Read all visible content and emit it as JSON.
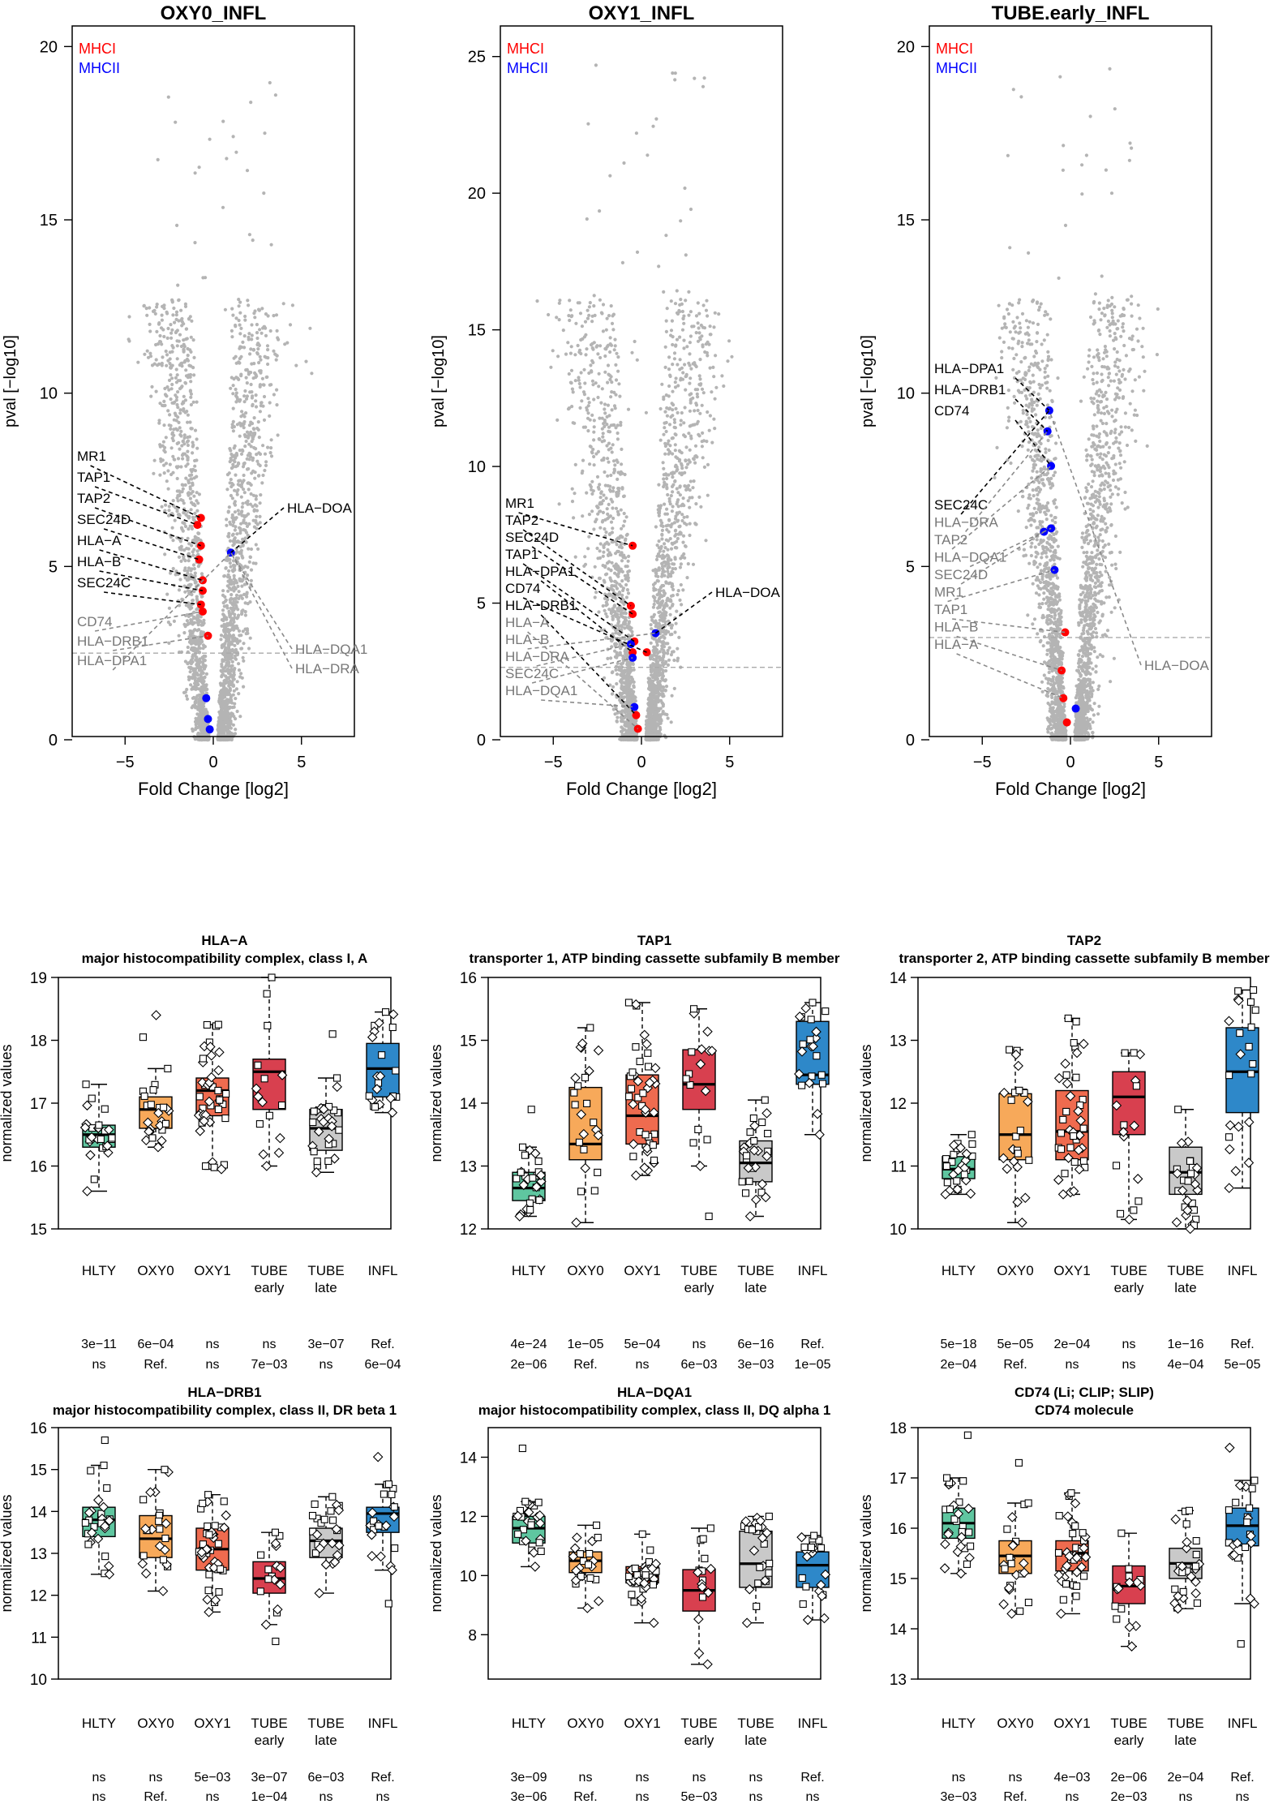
{
  "chart_data": {
    "volcano_common": {
      "type": "scatter",
      "xlabel": "Fold Change [log2]",
      "ylabel": "pval [−log10]",
      "xlim": [
        -8,
        8
      ],
      "xticks": [
        -5,
        0,
        5
      ],
      "legend": [
        {
          "label": "MHCI",
          "color": "#ff0000"
        },
        {
          "label": "MHCII",
          "color": "#0000ff"
        }
      ],
      "background_color": "#b4b4b4"
    },
    "volcanos": [
      {
        "title": "OXY0_INFL",
        "ylim": [
          0,
          20.5
        ],
        "yticks": [
          0,
          5,
          10,
          15,
          20
        ],
        "threshold": 2.5,
        "highlight": [
          {
            "x": -0.7,
            "y": 6.4,
            "color": "#ff0000"
          },
          {
            "x": -0.9,
            "y": 6.2,
            "color": "#ff0000"
          },
          {
            "x": -0.7,
            "y": 5.6,
            "color": "#ff0000"
          },
          {
            "x": -0.8,
            "y": 5.2,
            "color": "#ff0000"
          },
          {
            "x": -0.6,
            "y": 4.6,
            "color": "#ff0000"
          },
          {
            "x": -0.6,
            "y": 4.3,
            "color": "#ff0000"
          },
          {
            "x": -0.7,
            "y": 3.9,
            "color": "#ff0000"
          },
          {
            "x": -0.6,
            "y": 3.7,
            "color": "#ff0000"
          },
          {
            "x": -0.3,
            "y": 3.0,
            "color": "#ff0000"
          },
          {
            "x": 1.0,
            "y": 5.4,
            "color": "#0000ff"
          },
          {
            "x": -0.4,
            "y": 1.2,
            "color": "#0000ff"
          },
          {
            "x": -0.3,
            "y": 0.6,
            "color": "#0000ff"
          },
          {
            "x": -0.2,
            "y": 0.3,
            "color": "#0000ff"
          }
        ],
        "labels": [
          {
            "text": "MR1",
            "color": "#000000"
          },
          {
            "text": "TAP1",
            "color": "#000000"
          },
          {
            "text": "TAP2",
            "color": "#000000"
          },
          {
            "text": "SEC24D",
            "color": "#000000"
          },
          {
            "text": "HLA−A",
            "color": "#000000"
          },
          {
            "text": "HLA−B",
            "color": "#000000"
          },
          {
            "text": "SEC24C",
            "color": "#000000"
          },
          {
            "text": "CD74",
            "color": "#777777"
          },
          {
            "text": "HLA−DRB1",
            "color": "#777777"
          },
          {
            "text": "HLA−DPA1",
            "color": "#777777"
          }
        ],
        "right_labels": [
          {
            "text": "HLA−DOA",
            "color": "#000000"
          },
          {
            "text": "HLA−DQA1",
            "color": "#777777"
          },
          {
            "text": "HLA−DRA",
            "color": "#777777"
          }
        ]
      },
      {
        "title": "OXY1_INFL",
        "ylim": [
          0,
          26
        ],
        "yticks": [
          0,
          5,
          10,
          15,
          20,
          25
        ],
        "threshold": 2.65,
        "highlight": [
          {
            "x": -0.5,
            "y": 7.1,
            "color": "#ff0000"
          },
          {
            "x": -0.6,
            "y": 4.9,
            "color": "#ff0000"
          },
          {
            "x": -0.5,
            "y": 4.6,
            "color": "#ff0000"
          },
          {
            "x": -0.4,
            "y": 3.6,
            "color": "#ff0000"
          },
          {
            "x": -0.5,
            "y": 3.2,
            "color": "#ff0000"
          },
          {
            "x": 0.3,
            "y": 3.2,
            "color": "#ff0000"
          },
          {
            "x": -0.3,
            "y": 0.9,
            "color": "#ff0000"
          },
          {
            "x": -0.2,
            "y": 0.4,
            "color": "#ff0000"
          },
          {
            "x": 0.8,
            "y": 3.9,
            "color": "#0000ff"
          },
          {
            "x": -0.6,
            "y": 3.5,
            "color": "#0000ff"
          },
          {
            "x": -0.5,
            "y": 3.0,
            "color": "#0000ff"
          },
          {
            "x": -0.4,
            "y": 1.2,
            "color": "#0000ff"
          }
        ],
        "labels": [
          {
            "text": "MR1",
            "color": "#000000"
          },
          {
            "text": "TAP2",
            "color": "#000000"
          },
          {
            "text": "SEC24D",
            "color": "#000000"
          },
          {
            "text": "TAP1",
            "color": "#000000"
          },
          {
            "text": "HLA−DPA1",
            "color": "#000000"
          },
          {
            "text": "CD74",
            "color": "#000000"
          },
          {
            "text": "HLA−DRB1",
            "color": "#000000"
          },
          {
            "text": "HLA−A",
            "color": "#777777"
          },
          {
            "text": "HLA−B",
            "color": "#777777"
          },
          {
            "text": "HLA−DRA",
            "color": "#777777"
          },
          {
            "text": "SEC24C",
            "color": "#777777"
          },
          {
            "text": "HLA−DQA1",
            "color": "#777777"
          }
        ],
        "right_labels": [
          {
            "text": "HLA−DOA",
            "color": "#000000"
          }
        ]
      },
      {
        "title": "TUBE.early_INFL",
        "ylim": [
          0,
          20.5
        ],
        "yticks": [
          0,
          5,
          10,
          15,
          20
        ],
        "threshold": 2.95,
        "highlight": [
          {
            "x": -1.2,
            "y": 9.5,
            "color": "#0000ff"
          },
          {
            "x": -1.3,
            "y": 8.9,
            "color": "#0000ff"
          },
          {
            "x": -1.1,
            "y": 7.9,
            "color": "#0000ff"
          },
          {
            "x": -1.1,
            "y": 6.1,
            "color": "#0000ff"
          },
          {
            "x": -1.5,
            "y": 6.0,
            "color": "#0000ff"
          },
          {
            "x": -0.9,
            "y": 4.9,
            "color": "#0000ff"
          },
          {
            "x": -0.3,
            "y": 3.1,
            "color": "#ff0000"
          },
          {
            "x": -0.5,
            "y": 2.0,
            "color": "#ff0000"
          },
          {
            "x": -0.4,
            "y": 1.2,
            "color": "#ff0000"
          },
          {
            "x": -0.2,
            "y": 0.5,
            "color": "#ff0000"
          },
          {
            "x": 0.3,
            "y": 0.9,
            "color": "#0000ff"
          }
        ],
        "labels_top": [
          {
            "text": "HLA−DPA1",
            "color": "#000000"
          },
          {
            "text": "HLA−DRB1",
            "color": "#000000"
          },
          {
            "text": "CD74",
            "color": "#000000"
          }
        ],
        "labels": [
          {
            "text": "SEC24C",
            "color": "#000000"
          },
          {
            "text": "HLA−DRA",
            "color": "#777777"
          },
          {
            "text": "TAP2",
            "color": "#777777"
          },
          {
            "text": "HLA−DQA1",
            "color": "#777777"
          },
          {
            "text": "SEC24D",
            "color": "#777777"
          },
          {
            "text": "MR1",
            "color": "#777777"
          },
          {
            "text": "TAP1",
            "color": "#777777"
          },
          {
            "text": "HLA−B",
            "color": "#777777"
          },
          {
            "text": "HLA−A",
            "color": "#777777"
          }
        ],
        "right_labels": [
          {
            "text": "HLA−DOA",
            "color": "#777777"
          }
        ]
      }
    ],
    "boxplot_common": {
      "type": "box",
      "ylabel": "normalized values",
      "groups": [
        "HLTY",
        "OXY0",
        "OXY1",
        "TUBE\nearly",
        "TUBE\nlate",
        "INFL"
      ],
      "colors": [
        "#5fc6a0",
        "#f7a95a",
        "#ef6b4f",
        "#d8404f",
        "#c9c9c9",
        "#2e88c9"
      ]
    },
    "boxplots": [
      {
        "gene": "HLA−A",
        "description": "major histocompatibility complex, class I, A",
        "ylim": [
          15,
          19
        ],
        "yticks": [
          15,
          16,
          17,
          18,
          19
        ],
        "boxes": [
          {
            "q1": 16.3,
            "median": 16.5,
            "q3": 16.65,
            "wlo": 15.6,
            "whi": 17.3,
            "n": 24
          },
          {
            "q1": 16.6,
            "median": 16.9,
            "q3": 17.1,
            "wlo": 16.3,
            "whi": 17.55,
            "extra": [
              18.05,
              18.4
            ],
            "n": 22
          },
          {
            "q1": 16.8,
            "median": 17.2,
            "q3": 17.4,
            "wlo": 15.95,
            "whi": 18.25,
            "n": 40
          },
          {
            "q1": 16.9,
            "median": 17.5,
            "q3": 17.7,
            "wlo": 16.0,
            "whi": 19.0,
            "n": 14
          },
          {
            "q1": 16.25,
            "median": 16.6,
            "q3": 16.9,
            "wlo": 15.9,
            "whi": 17.4,
            "extra": [
              18.1
            ],
            "n": 26
          },
          {
            "q1": 17.1,
            "median": 17.55,
            "q3": 17.95,
            "wlo": 16.85,
            "whi": 18.45,
            "n": 20
          }
        ],
        "pvals_row1": [
          "3e−11",
          "6e−04",
          "ns",
          "ns",
          "3e−07",
          "Ref."
        ],
        "pvals_row2": [
          "ns",
          "Ref.",
          "ns",
          "7e−03",
          "ns",
          "6e−04"
        ]
      },
      {
        "gene": "TAP1",
        "description": "transporter 1, ATP binding cassette subfamily B member",
        "ylim": [
          12,
          16
        ],
        "yticks": [
          12,
          13,
          14,
          15,
          16
        ],
        "boxes": [
          {
            "q1": 12.45,
            "median": 12.65,
            "q3": 12.9,
            "wlo": 12.2,
            "whi": 13.3,
            "extra": [
              13.9
            ],
            "n": 26
          },
          {
            "q1": 13.1,
            "median": 13.35,
            "q3": 14.25,
            "wlo": 12.1,
            "whi": 15.2,
            "n": 22
          },
          {
            "q1": 13.35,
            "median": 13.8,
            "q3": 14.45,
            "wlo": 12.85,
            "whi": 15.6,
            "n": 40
          },
          {
            "q1": 13.9,
            "median": 14.3,
            "q3": 14.85,
            "wlo": 13.0,
            "whi": 15.5,
            "extra": [
              12.2
            ],
            "n": 14
          },
          {
            "q1": 12.75,
            "median": 13.05,
            "q3": 13.4,
            "wlo": 12.2,
            "whi": 14.05,
            "n": 26
          },
          {
            "q1": 14.3,
            "median": 14.45,
            "q3": 15.3,
            "wlo": 13.5,
            "whi": 15.6,
            "n": 20
          }
        ],
        "pvals_row1": [
          "4e−24",
          "1e−05",
          "5e−04",
          "ns",
          "6e−16",
          "Ref."
        ],
        "pvals_row2": [
          "2e−06",
          "Ref.",
          "ns",
          "6e−03",
          "3e−03",
          "1e−05"
        ]
      },
      {
        "gene": "TAP2",
        "description": "transporter 2, ATP binding cassette subfamily B member",
        "ylim": [
          10,
          14
        ],
        "yticks": [
          10,
          11,
          12,
          13,
          14
        ],
        "boxes": [
          {
            "q1": 10.8,
            "median": 10.95,
            "q3": 11.15,
            "wlo": 10.55,
            "whi": 11.5,
            "n": 26
          },
          {
            "q1": 11.1,
            "median": 11.5,
            "q3": 12.15,
            "wlo": 10.1,
            "whi": 12.85,
            "n": 22
          },
          {
            "q1": 11.1,
            "median": 11.55,
            "q3": 12.2,
            "wlo": 10.55,
            "whi": 13.35,
            "n": 40
          },
          {
            "q1": 11.5,
            "median": 12.1,
            "q3": 12.5,
            "wlo": 10.15,
            "whi": 12.8,
            "n": 14
          },
          {
            "q1": 10.55,
            "median": 10.9,
            "q3": 11.3,
            "wlo": 10.0,
            "whi": 11.9,
            "n": 26
          },
          {
            "q1": 11.85,
            "median": 12.5,
            "q3": 13.2,
            "wlo": 10.65,
            "whi": 13.8,
            "n": 20
          }
        ],
        "pvals_row1": [
          "5e−18",
          "5e−05",
          "2e−04",
          "ns",
          "1e−16",
          "Ref."
        ],
        "pvals_row2": [
          "2e−04",
          "Ref.",
          "ns",
          "ns",
          "4e−04",
          "5e−05"
        ]
      },
      {
        "gene": "HLA−DRB1",
        "description": "major histocompatibility complex, class II, DR beta 1",
        "ylim": [
          10,
          16
        ],
        "yticks": [
          10,
          11,
          12,
          13,
          14,
          15,
          16
        ],
        "boxes": [
          {
            "q1": 13.4,
            "median": 13.8,
            "q3": 14.1,
            "wlo": 12.5,
            "whi": 15.1,
            "extra": [
              15.7
            ],
            "n": 26
          },
          {
            "q1": 12.9,
            "median": 13.35,
            "q3": 13.9,
            "wlo": 12.1,
            "whi": 15.0,
            "n": 22
          },
          {
            "q1": 12.6,
            "median": 13.1,
            "q3": 13.6,
            "wlo": 11.6,
            "whi": 14.4,
            "n": 40
          },
          {
            "q1": 12.05,
            "median": 12.4,
            "q3": 12.8,
            "wlo": 11.3,
            "whi": 13.5,
            "extra": [
              10.9
            ],
            "n": 14
          },
          {
            "q1": 12.9,
            "median": 13.3,
            "q3": 13.6,
            "wlo": 12.05,
            "whi": 14.35,
            "n": 26
          },
          {
            "q1": 13.5,
            "median": 13.95,
            "q3": 14.1,
            "wlo": 12.6,
            "whi": 14.65,
            "extra": [
              11.8,
              15.3
            ],
            "n": 20
          }
        ],
        "pvals_row1": [
          "ns",
          "ns",
          "5e−03",
          "3e−07",
          "6e−03",
          "Ref."
        ],
        "pvals_row2": [
          "ns",
          "Ref.",
          "ns",
          "1e−04",
          "ns",
          "ns"
        ]
      },
      {
        "gene": "HLA−DQA1",
        "description": "major histocompatibility complex, class II, DQ alpha 1",
        "ylim": [
          6.5,
          15
        ],
        "yticks": [
          8,
          10,
          12,
          14
        ],
        "boxes": [
          {
            "q1": 11.1,
            "median": 11.6,
            "q3": 12.0,
            "wlo": 10.3,
            "whi": 12.5,
            "extra": [
              14.3
            ],
            "n": 26
          },
          {
            "q1": 10.1,
            "median": 10.5,
            "q3": 10.8,
            "wlo": 8.9,
            "whi": 11.7,
            "n": 22
          },
          {
            "q1": 9.75,
            "median": 10.0,
            "q3": 10.3,
            "wlo": 8.4,
            "whi": 11.4,
            "n": 40
          },
          {
            "q1": 8.8,
            "median": 9.5,
            "q3": 10.2,
            "wlo": 7.0,
            "whi": 11.6,
            "n": 14
          },
          {
            "q1": 9.6,
            "median": 10.4,
            "q3": 11.5,
            "wlo": 8.4,
            "whi": 12.0,
            "n": 26
          },
          {
            "q1": 9.6,
            "median": 10.35,
            "q3": 10.8,
            "wlo": 8.5,
            "whi": 11.35,
            "n": 20
          }
        ],
        "pvals_row1": [
          "3e−09",
          "ns",
          "ns",
          "ns",
          "ns",
          "Ref."
        ],
        "pvals_row2": [
          "3e−06",
          "Ref.",
          "ns",
          "5e−03",
          "ns",
          "ns"
        ]
      },
      {
        "gene": "CD74 (Li; CLIP; SLIP)",
        "description": "CD74 molecule",
        "ylim": [
          13,
          18
        ],
        "yticks": [
          13,
          14,
          15,
          16,
          17,
          18
        ],
        "boxes": [
          {
            "q1": 15.8,
            "median": 16.1,
            "q3": 16.4,
            "wlo": 15.1,
            "whi": 17.0,
            "extra": [
              17.85
            ],
            "n": 26
          },
          {
            "q1": 15.1,
            "median": 15.45,
            "q3": 15.75,
            "wlo": 14.3,
            "whi": 16.5,
            "extra": [
              17.3
            ],
            "n": 22
          },
          {
            "q1": 15.15,
            "median": 15.5,
            "q3": 15.75,
            "wlo": 14.3,
            "whi": 16.7,
            "n": 40
          },
          {
            "q1": 14.5,
            "median": 14.85,
            "q3": 15.25,
            "wlo": 13.65,
            "whi": 15.9,
            "n": 14
          },
          {
            "q1": 15.0,
            "median": 15.3,
            "q3": 15.6,
            "wlo": 14.4,
            "whi": 16.35,
            "n": 26
          },
          {
            "q1": 15.65,
            "median": 16.05,
            "q3": 16.4,
            "wlo": 14.5,
            "whi": 16.95,
            "extra": [
              13.7,
              17.6
            ],
            "n": 20
          }
        ],
        "pvals_row1": [
          "ns",
          "ns",
          "4e−03",
          "2e−06",
          "2e−04",
          "Ref."
        ],
        "pvals_row2": [
          "3e−03",
          "Ref.",
          "ns",
          "2e−03",
          "ns",
          "ns"
        ]
      }
    ]
  }
}
